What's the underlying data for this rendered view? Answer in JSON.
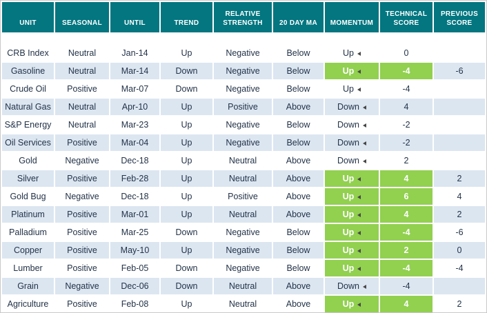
{
  "colors": {
    "header_bg": "#037680",
    "row_alt_bg": "#DCE6F1",
    "highlight_bg": "#92D050",
    "text": "#233348"
  },
  "chart_data": {
    "type": "table",
    "columns": [
      "UNIT",
      "SEASONAL",
      "UNTIL",
      "TREND",
      "RELATIVE STRENGTH",
      "20 DAY MA",
      "MOMENTUM",
      "TECHNICAL SCORE",
      "PREVIOUS SCORE"
    ],
    "rows": [
      {
        "unit": "CRB Index",
        "seasonal": "Neutral",
        "until": "Jan-14",
        "trend": "Up",
        "relative_strength": "Negative",
        "ma_20_day": "Below",
        "momentum": "Up",
        "momentum_highlighted": false,
        "technical_score": "0",
        "technical_score_highlighted": false,
        "previous_score": ""
      },
      {
        "unit": "Gasoline",
        "seasonal": "Neutral",
        "until": "Mar-14",
        "trend": "Down",
        "relative_strength": "Negative",
        "ma_20_day": "Below",
        "momentum": "Up",
        "momentum_highlighted": true,
        "technical_score": "-4",
        "technical_score_highlighted": true,
        "previous_score": "-6"
      },
      {
        "unit": "Crude Oil",
        "seasonal": "Positive",
        "until": "Mar-07",
        "trend": "Down",
        "relative_strength": "Negative",
        "ma_20_day": "Below",
        "momentum": "Up",
        "momentum_highlighted": false,
        "technical_score": "-4",
        "technical_score_highlighted": false,
        "previous_score": ""
      },
      {
        "unit": "Natural Gas",
        "seasonal": "Neutral",
        "until": "Apr-10",
        "trend": "Up",
        "relative_strength": "Positive",
        "ma_20_day": "Above",
        "momentum": "Down",
        "momentum_highlighted": false,
        "technical_score": "4",
        "technical_score_highlighted": false,
        "previous_score": ""
      },
      {
        "unit": "S&P Energy",
        "seasonal": "Neutral",
        "until": "Mar-23",
        "trend": "Up",
        "relative_strength": "Negative",
        "ma_20_day": "Below",
        "momentum": "Down",
        "momentum_highlighted": false,
        "technical_score": "-2",
        "technical_score_highlighted": false,
        "previous_score": ""
      },
      {
        "unit": "Oil Services",
        "seasonal": "Positive",
        "until": "Mar-04",
        "trend": "Up",
        "relative_strength": "Negative",
        "ma_20_day": "Below",
        "momentum": "Down",
        "momentum_highlighted": false,
        "technical_score": "-2",
        "technical_score_highlighted": false,
        "previous_score": ""
      },
      {
        "unit": "Gold",
        "seasonal": "Negative",
        "until": "Dec-18",
        "trend": "Up",
        "relative_strength": "Neutral",
        "ma_20_day": "Above",
        "momentum": "Down",
        "momentum_highlighted": false,
        "technical_score": "2",
        "technical_score_highlighted": false,
        "previous_score": ""
      },
      {
        "unit": "Silver",
        "seasonal": "Positive",
        "until": "Feb-28",
        "trend": "Up",
        "relative_strength": "Neutral",
        "ma_20_day": "Above",
        "momentum": "Up",
        "momentum_highlighted": true,
        "technical_score": "4",
        "technical_score_highlighted": true,
        "previous_score": "2"
      },
      {
        "unit": "Gold Bug",
        "seasonal": "Negative",
        "until": "Dec-18",
        "trend": "Up",
        "relative_strength": "Positive",
        "ma_20_day": "Above",
        "momentum": "Up",
        "momentum_highlighted": true,
        "technical_score": "6",
        "technical_score_highlighted": true,
        "previous_score": "4"
      },
      {
        "unit": "Platinum",
        "seasonal": "Positive",
        "until": "Mar-01",
        "trend": "Up",
        "relative_strength": "Neutral",
        "ma_20_day": "Above",
        "momentum": "Up",
        "momentum_highlighted": true,
        "technical_score": "4",
        "technical_score_highlighted": true,
        "previous_score": "2"
      },
      {
        "unit": "Palladium",
        "seasonal": "Positive",
        "until": "Mar-25",
        "trend": "Down",
        "relative_strength": "Negative",
        "ma_20_day": "Below",
        "momentum": "Up",
        "momentum_highlighted": true,
        "technical_score": "-4",
        "technical_score_highlighted": true,
        "previous_score": "-6"
      },
      {
        "unit": "Copper",
        "seasonal": "Positive",
        "until": "May-10",
        "trend": "Up",
        "relative_strength": "Negative",
        "ma_20_day": "Below",
        "momentum": "Up",
        "momentum_highlighted": true,
        "technical_score": "2",
        "technical_score_highlighted": true,
        "previous_score": "0"
      },
      {
        "unit": "Lumber",
        "seasonal": "Positive",
        "until": "Feb-05",
        "trend": "Down",
        "relative_strength": "Negative",
        "ma_20_day": "Below",
        "momentum": "Up",
        "momentum_highlighted": true,
        "technical_score": "-4",
        "technical_score_highlighted": true,
        "previous_score": "-4"
      },
      {
        "unit": "Grain",
        "seasonal": "Negative",
        "until": "Dec-06",
        "trend": "Down",
        "relative_strength": "Neutral",
        "ma_20_day": "Above",
        "momentum": "Down",
        "momentum_highlighted": false,
        "technical_score": "-4",
        "technical_score_highlighted": false,
        "previous_score": ""
      },
      {
        "unit": "Agriculture",
        "seasonal": "Positive",
        "until": "Feb-08",
        "trend": "Up",
        "relative_strength": "Neutral",
        "ma_20_day": "Above",
        "momentum": "Up",
        "momentum_highlighted": true,
        "technical_score": "4",
        "technical_score_highlighted": true,
        "previous_score": "2"
      }
    ]
  }
}
